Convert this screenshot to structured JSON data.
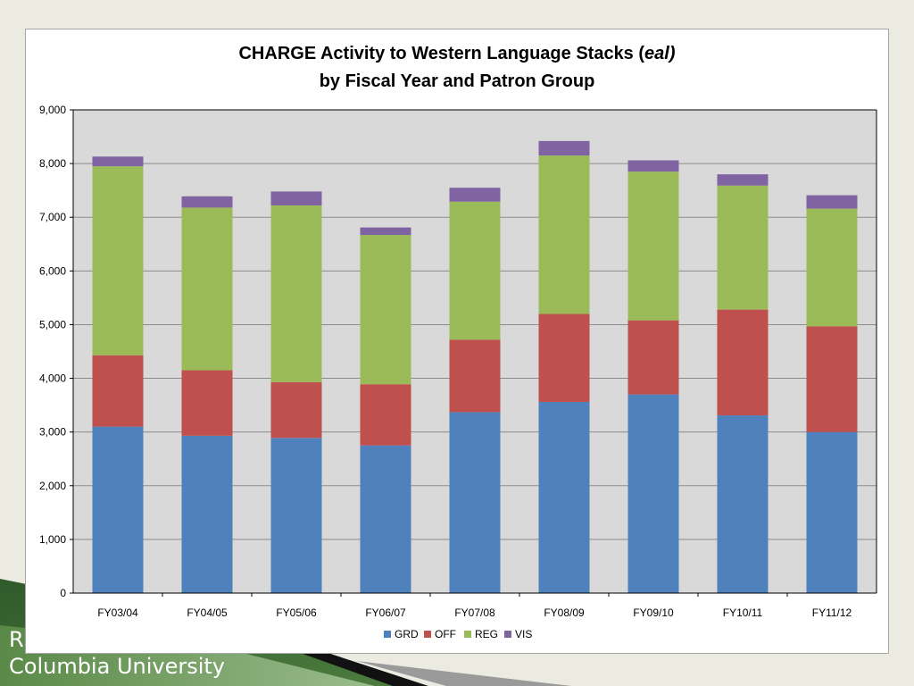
{
  "slide": {
    "footer_line1": "R",
    "footer_line2": "Columbia University",
    "colors": {
      "background": "#ecebe1",
      "dark_green": "#2f5a2a",
      "light_green": "#6f9b56"
    }
  },
  "chart_data": {
    "type": "bar",
    "stacked": true,
    "title_line1": "CHARGE Activity to Western Language Stacks (",
    "title_italic": "eal)",
    "title_line2": "by Fiscal Year and Patron Group",
    "categories": [
      "FY03/04",
      "FY04/05",
      "FY05/06",
      "FY06/07",
      "FY07/08",
      "FY08/09",
      "FY09/10",
      "FY10/11",
      "FY11/12"
    ],
    "series": [
      {
        "name": "GRD",
        "color": "#4f81bd",
        "values": [
          3100,
          2930,
          2890,
          2750,
          3370,
          3560,
          3700,
          3310,
          3000
        ]
      },
      {
        "name": "OFF",
        "color": "#c0504d",
        "values": [
          1330,
          1220,
          1040,
          1140,
          1350,
          1640,
          1380,
          1970,
          1970
        ]
      },
      {
        "name": "REG",
        "color": "#9bbb59",
        "values": [
          3520,
          3030,
          3290,
          2780,
          2570,
          2950,
          2770,
          2310,
          2190
        ]
      },
      {
        "name": "VIS",
        "color": "#8064a2",
        "values": [
          180,
          210,
          260,
          140,
          260,
          270,
          210,
          210,
          250
        ]
      }
    ],
    "ylim": [
      0,
      9000
    ],
    "yticks": [
      "0",
      "1,000",
      "2,000",
      "3,000",
      "4,000",
      "5,000",
      "6,000",
      "7,000",
      "8,000",
      "9,000"
    ],
    "grid": true,
    "legend_position": "bottom",
    "plot_background": "#d9d9d9"
  }
}
